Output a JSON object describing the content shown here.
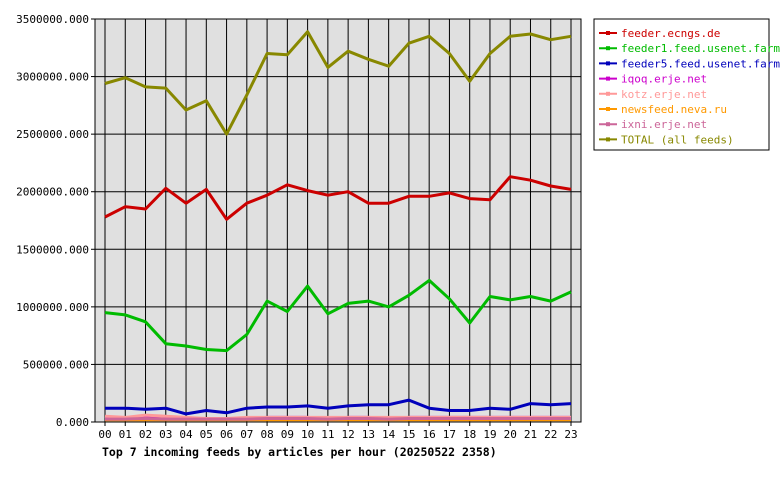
{
  "chart_data": {
    "type": "line",
    "title": "Top 7 incoming feeds by articles per hour (20250522 2358)",
    "x": [
      "00",
      "01",
      "02",
      "03",
      "04",
      "05",
      "06",
      "07",
      "08",
      "09",
      "10",
      "11",
      "12",
      "13",
      "14",
      "15",
      "16",
      "17",
      "18",
      "19",
      "20",
      "21",
      "22",
      "23"
    ],
    "y_ticks": [
      "0.000",
      "500000.000",
      "1000000.000",
      "1500000.000",
      "2000000.000",
      "2500000.000",
      "3000000.000",
      "3500000.000"
    ],
    "ylim": [
      0,
      3500000
    ],
    "grid": true,
    "legend_position": "top-right",
    "series": [
      {
        "name": "feeder.ecngs.de",
        "color": "#cc0000",
        "values": [
          1780000,
          1870000,
          1850000,
          2030000,
          1900000,
          2020000,
          1760000,
          1900000,
          1970000,
          2060000,
          2010000,
          1970000,
          2000000,
          1900000,
          1900000,
          1960000,
          1960000,
          1990000,
          1940000,
          1930000,
          2130000,
          2100000,
          2050000,
          2020000
        ]
      },
      {
        "name": "feeder1.feed.usenet.farm",
        "color": "#00bb00",
        "values": [
          950000,
          930000,
          870000,
          680000,
          660000,
          630000,
          620000,
          760000,
          1050000,
          960000,
          1180000,
          940000,
          1030000,
          1050000,
          1000000,
          1100000,
          1230000,
          1070000,
          860000,
          1090000,
          1060000,
          1090000,
          1050000,
          1130000
        ]
      },
      {
        "name": "feeder5.feed.usenet.farm",
        "color": "#0000bb",
        "values": [
          120000,
          120000,
          110000,
          120000,
          70000,
          100000,
          80000,
          120000,
          130000,
          130000,
          140000,
          120000,
          140000,
          150000,
          150000,
          190000,
          120000,
          100000,
          100000,
          120000,
          110000,
          160000,
          150000,
          160000
        ]
      },
      {
        "name": "iqoq.erje.net",
        "color": "#cc00cc",
        "values": [
          30000,
          30000,
          40000,
          30000,
          30000,
          30000,
          30000,
          30000,
          40000,
          40000,
          40000,
          30000,
          40000,
          40000,
          30000,
          40000,
          40000,
          40000,
          40000,
          40000,
          40000,
          40000,
          40000,
          40000
        ]
      },
      {
        "name": "kotz.erje.net",
        "color": "#ff9999",
        "values": [
          50000,
          40000,
          60000,
          50000,
          40000,
          30000,
          30000,
          40000,
          40000,
          40000,
          40000,
          40000,
          40000,
          40000,
          40000,
          40000,
          40000,
          40000,
          40000,
          40000,
          40000,
          40000,
          40000,
          40000
        ]
      },
      {
        "name": "newsfeed.neva.ru",
        "color": "#ff9900",
        "values": [
          20000,
          20000,
          20000,
          20000,
          20000,
          20000,
          20000,
          20000,
          20000,
          20000,
          20000,
          20000,
          20000,
          20000,
          20000,
          20000,
          20000,
          20000,
          20000,
          20000,
          20000,
          20000,
          20000,
          20000
        ]
      },
      {
        "name": "ixni.erje.net",
        "color": "#cc6699",
        "values": [
          25000,
          25000,
          30000,
          25000,
          25000,
          25000,
          25000,
          25000,
          30000,
          30000,
          30000,
          25000,
          30000,
          30000,
          25000,
          30000,
          30000,
          30000,
          30000,
          30000,
          30000,
          30000,
          30000,
          30000
        ]
      },
      {
        "name": "TOTAL (all feeds)",
        "color": "#888800",
        "values": [
          2940000,
          2990000,
          2910000,
          2900000,
          2710000,
          2790000,
          2500000,
          2840000,
          3200000,
          3190000,
          3390000,
          3080000,
          3220000,
          3150000,
          3090000,
          3290000,
          3350000,
          3200000,
          2960000,
          3200000,
          3350000,
          3370000,
          3320000,
          3350000
        ]
      }
    ]
  }
}
